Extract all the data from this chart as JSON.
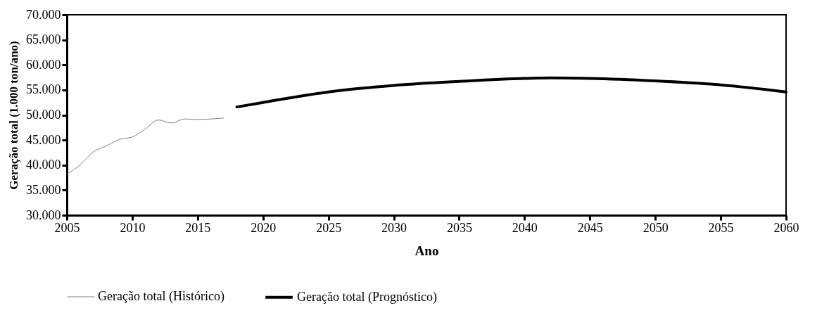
{
  "chart_data": {
    "type": "line",
    "xlabel": "Ano",
    "ylabel": "Geração total (1.000 ton/ano)",
    "xlim": [
      2005,
      2060
    ],
    "xticks": [
      2005,
      2010,
      2015,
      2020,
      2025,
      2030,
      2035,
      2040,
      2045,
      2050,
      2055,
      2060
    ],
    "ylim": [
      30000,
      70000
    ],
    "yticks": [
      {
        "value": 30000,
        "label": "30.000"
      },
      {
        "value": 35000,
        "label": "35.000"
      },
      {
        "value": 40000,
        "label": "40.000"
      },
      {
        "value": 45000,
        "label": "45.000"
      },
      {
        "value": 50000,
        "label": "50.000"
      },
      {
        "value": 55000,
        "label": "55.000"
      },
      {
        "value": 60000,
        "label": "60.000"
      },
      {
        "value": 65000,
        "label": "65.000"
      },
      {
        "value": 70000,
        "label": "70.000"
      }
    ],
    "grid": false,
    "legend": "bottom",
    "series": [
      {
        "name": "Geração total (Histórico)",
        "color": "#808080",
        "x": [
          2005,
          2006,
          2007,
          2008,
          2009,
          2010,
          2011,
          2012,
          2013,
          2014,
          2015,
          2016,
          2017
        ],
        "values": [
          38200,
          40000,
          42600,
          43800,
          45100,
          45600,
          47200,
          49000,
          48400,
          49200,
          49100,
          49200,
          49400
        ]
      },
      {
        "name": "Geração total (Prognóstico)",
        "color": "#000000",
        "x": [
          2018,
          2020,
          2025,
          2030,
          2035,
          2040,
          2042,
          2045,
          2050,
          2055,
          2060
        ],
        "values": [
          51600,
          52500,
          54600,
          55900,
          56700,
          57300,
          57400,
          57300,
          56800,
          56000,
          54600
        ]
      }
    ]
  }
}
